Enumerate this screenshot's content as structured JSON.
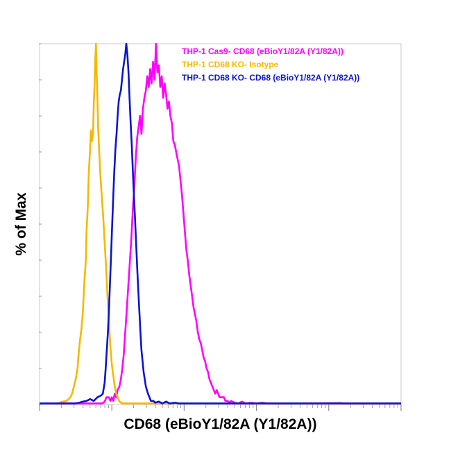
{
  "chart_data": {
    "type": "line",
    "title": "",
    "xlabel": "CD68 (eBioY1/82A (Y1/82A))",
    "ylabel": "% of Max",
    "x_scale": "log",
    "xlim": [
      0,
      100
    ],
    "ylim": [
      0,
      100
    ],
    "grid": false,
    "legend_position": "top-right",
    "x_tick_labels": [],
    "y_tick_labels": [],
    "series": [
      {
        "name": "THP-1 Cas9- CD68 (eBioY1/82A (Y1/82A))",
        "color": "#ff00ff",
        "points": [
          [
            0.0,
            0.3
          ],
          [
            17.3,
            0.3
          ],
          [
            17.7,
            0.5
          ],
          [
            18.1,
            1
          ],
          [
            18.5,
            2
          ],
          [
            19.2,
            2
          ],
          [
            19.6,
            1
          ],
          [
            20.0,
            2
          ],
          [
            20.4,
            1
          ],
          [
            20.8,
            3
          ],
          [
            21.2,
            2
          ],
          [
            21.6,
            4
          ],
          [
            22.1,
            5
          ],
          [
            22.5,
            7
          ],
          [
            22.9,
            10
          ],
          [
            23.3,
            14
          ],
          [
            23.7,
            20
          ],
          [
            24.1,
            26
          ],
          [
            24.5,
            32
          ],
          [
            25.0,
            40
          ],
          [
            25.4,
            46
          ],
          [
            25.8,
            54
          ],
          [
            26.2,
            60
          ],
          [
            26.6,
            68
          ],
          [
            27.0,
            74
          ],
          [
            27.4,
            77
          ],
          [
            27.8,
            80
          ],
          [
            28.2,
            75
          ],
          [
            28.6,
            82
          ],
          [
            29.0,
            85
          ],
          [
            29.4,
            87
          ],
          [
            29.8,
            91
          ],
          [
            30.2,
            88
          ],
          [
            30.6,
            93
          ],
          [
            31.0,
            89
          ],
          [
            31.4,
            95
          ],
          [
            31.8,
            90
          ],
          [
            32.2,
            100
          ],
          [
            32.6,
            92
          ],
          [
            33.0,
            94
          ],
          [
            33.4,
            88
          ],
          [
            33.8,
            91
          ],
          [
            34.2,
            85
          ],
          [
            34.6,
            89
          ],
          [
            35.0,
            86
          ],
          [
            35.4,
            82
          ],
          [
            35.8,
            84
          ],
          [
            36.2,
            80
          ],
          [
            36.6,
            78
          ],
          [
            37.0,
            73
          ],
          [
            37.4,
            72
          ],
          [
            37.8,
            70
          ],
          [
            38.2,
            68
          ],
          [
            38.6,
            66
          ],
          [
            39.0,
            62
          ],
          [
            39.4,
            58
          ],
          [
            39.8,
            53
          ],
          [
            40.2,
            48
          ],
          [
            40.6,
            43
          ],
          [
            41.0,
            40
          ],
          [
            41.4,
            36
          ],
          [
            41.8,
            33
          ],
          [
            42.2,
            30
          ],
          [
            42.6,
            27
          ],
          [
            43.0,
            25
          ],
          [
            43.4,
            23
          ],
          [
            43.8,
            20
          ],
          [
            44.2,
            18
          ],
          [
            44.6,
            17
          ],
          [
            45.0,
            15
          ],
          [
            45.4,
            13
          ],
          [
            45.8,
            12
          ],
          [
            46.2,
            10
          ],
          [
            46.6,
            9
          ],
          [
            47.0,
            7
          ],
          [
            47.4,
            6
          ],
          [
            47.8,
            5
          ],
          [
            48.2,
            4
          ],
          [
            48.6,
            3
          ],
          [
            49.0,
            4
          ],
          [
            49.4,
            3
          ],
          [
            49.8,
            2
          ],
          [
            50.2,
            2
          ],
          [
            51.0,
            2
          ],
          [
            51.4,
            1
          ],
          [
            52.0,
            1
          ],
          [
            52.5,
            0.5
          ],
          [
            53.0,
            1
          ],
          [
            54.0,
            0.5
          ],
          [
            55.0,
            0.3
          ],
          [
            56.0,
            0.8
          ],
          [
            57.0,
            0.3
          ],
          [
            58.5,
            0.5
          ],
          [
            60.0,
            0.3
          ],
          [
            61.5,
            0.5
          ],
          [
            63.0,
            0.3
          ],
          [
            66.0,
            0.3
          ],
          [
            70.0,
            0.3
          ],
          [
            83.5,
            0.4
          ],
          [
            84.0,
            0.3
          ],
          [
            100,
            0.3
          ]
        ]
      },
      {
        "name": "THP-1 CD68 KO- Isotype",
        "color": "#f5b800",
        "points": [
          [
            0.0,
            0.3
          ],
          [
            4.5,
            0.3
          ],
          [
            5.5,
            0.5
          ],
          [
            6.5,
            0.8
          ],
          [
            7.5,
            1
          ],
          [
            8.0,
            1.5
          ],
          [
            8.5,
            2
          ],
          [
            9.0,
            3
          ],
          [
            9.5,
            5
          ],
          [
            10.0,
            7
          ],
          [
            10.5,
            10
          ],
          [
            10.8,
            14
          ],
          [
            11.2,
            18
          ],
          [
            11.6,
            21
          ],
          [
            12.0,
            26
          ],
          [
            12.4,
            34
          ],
          [
            12.8,
            40
          ],
          [
            13.0,
            48
          ],
          [
            13.2,
            52
          ],
          [
            13.4,
            56
          ],
          [
            13.6,
            64
          ],
          [
            14.0,
            71
          ],
          [
            14.2,
            76
          ],
          [
            14.5,
            73
          ],
          [
            14.8,
            75
          ],
          [
            15.0,
            83
          ],
          [
            15.2,
            88
          ],
          [
            15.4,
            95
          ],
          [
            15.6,
            100
          ],
          [
            15.8,
            92
          ],
          [
            16.0,
            85
          ],
          [
            16.2,
            77
          ],
          [
            16.5,
            70
          ],
          [
            16.8,
            64
          ],
          [
            17.2,
            58
          ],
          [
            17.6,
            52
          ],
          [
            18.0,
            45
          ],
          [
            18.4,
            38
          ],
          [
            18.8,
            30
          ],
          [
            19.2,
            23
          ],
          [
            19.6,
            16
          ],
          [
            20.0,
            11
          ],
          [
            20.4,
            8
          ],
          [
            20.8,
            5
          ],
          [
            21.2,
            3
          ],
          [
            21.6,
            2
          ],
          [
            22.0,
            1
          ],
          [
            22.5,
            0.5
          ],
          [
            23.0,
            0.3
          ],
          [
            100,
            0.3
          ]
        ]
      },
      {
        "name": "THP-1 CD68 KO- CD68 (eBioY1/82A (Y1/82A))",
        "color": "#0a14d0",
        "points": [
          [
            0.0,
            0.3
          ],
          [
            10.0,
            0.3
          ],
          [
            11.0,
            0.5
          ],
          [
            12.0,
            0.8
          ],
          [
            13.0,
            1
          ],
          [
            14.0,
            1.5
          ],
          [
            15.0,
            1
          ],
          [
            16.0,
            2
          ],
          [
            17.0,
            2.5
          ],
          [
            17.5,
            3
          ],
          [
            18.0,
            6
          ],
          [
            18.3,
            10
          ],
          [
            18.6,
            15
          ],
          [
            18.9,
            20
          ],
          [
            19.2,
            26
          ],
          [
            19.5,
            34
          ],
          [
            19.8,
            42
          ],
          [
            20.1,
            50
          ],
          [
            20.4,
            58
          ],
          [
            20.7,
            65
          ],
          [
            21.0,
            71
          ],
          [
            21.3,
            75
          ],
          [
            21.6,
            80
          ],
          [
            21.9,
            84
          ],
          [
            22.2,
            86
          ],
          [
            22.5,
            87
          ],
          [
            22.8,
            90
          ],
          [
            23.1,
            93
          ],
          [
            23.4,
            95
          ],
          [
            23.7,
            97
          ],
          [
            24.0,
            100
          ],
          [
            24.3,
            97
          ],
          [
            24.6,
            92
          ],
          [
            24.9,
            85
          ],
          [
            25.2,
            78
          ],
          [
            25.5,
            72
          ],
          [
            25.8,
            65
          ],
          [
            26.1,
            58
          ],
          [
            26.4,
            52
          ],
          [
            26.7,
            45
          ],
          [
            27.0,
            38
          ],
          [
            27.3,
            32
          ],
          [
            27.6,
            26
          ],
          [
            27.9,
            20
          ],
          [
            28.2,
            15
          ],
          [
            28.5,
            12
          ],
          [
            28.8,
            9
          ],
          [
            29.1,
            7
          ],
          [
            29.4,
            5
          ],
          [
            29.7,
            4
          ],
          [
            30.0,
            3
          ],
          [
            30.4,
            2
          ],
          [
            30.8,
            1
          ],
          [
            31.5,
            1
          ],
          [
            32.0,
            0.5
          ],
          [
            33.0,
            0.8
          ],
          [
            34.0,
            0.3
          ],
          [
            35.0,
            0.8
          ],
          [
            36.0,
            0.3
          ],
          [
            37.5,
            0.5
          ],
          [
            38.5,
            0.3
          ],
          [
            100,
            0.3
          ]
        ]
      }
    ]
  }
}
